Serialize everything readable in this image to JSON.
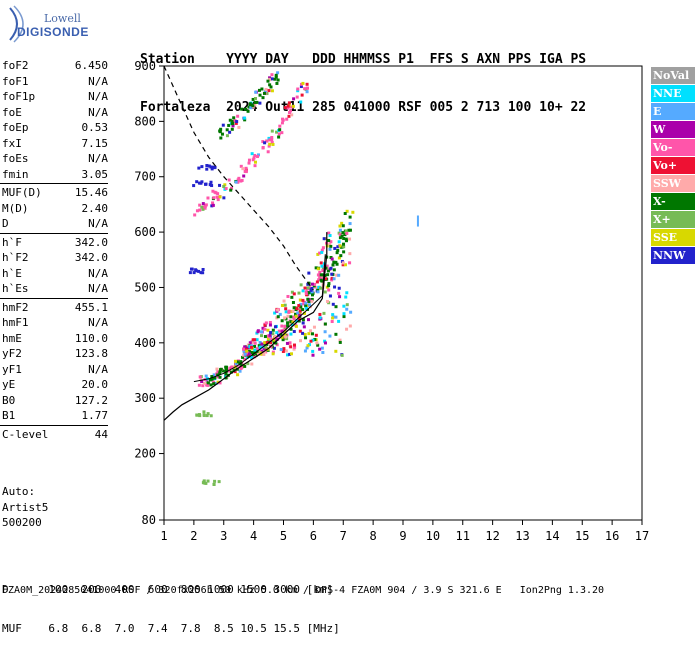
{
  "logo": {
    "line1": "Lowell",
    "line2": "DIGISONDE"
  },
  "header": {
    "line1": "Station    YYYY DAY   DDD HHMMSS P1  FFS S AXN PPS IGA PS",
    "line2": "Fortaleza  2024 Out11 285 041000 RSF 005 2 713 100 10+ 22"
  },
  "params": {
    "group1": [
      {
        "k": "foF2",
        "v": "6.450"
      },
      {
        "k": "foF1",
        "v": "N/A"
      },
      {
        "k": "foF1p",
        "v": "N/A"
      },
      {
        "k": "foE",
        "v": "N/A"
      },
      {
        "k": "foEp",
        "v": "0.53"
      },
      {
        "k": "fxI",
        "v": "7.15"
      },
      {
        "k": "foEs",
        "v": "N/A"
      },
      {
        "k": "fmin",
        "v": "3.05"
      }
    ],
    "group2": [
      {
        "k": "MUF(D)",
        "v": "15.46"
      },
      {
        "k": "M(D)",
        "v": "2.40"
      },
      {
        "k": "D",
        "v": "N/A"
      }
    ],
    "group3": [
      {
        "k": "h`F",
        "v": "342.0"
      },
      {
        "k": "h`F2",
        "v": "342.0"
      },
      {
        "k": "h`E",
        "v": "N/A"
      },
      {
        "k": "h`Es",
        "v": "N/A"
      }
    ],
    "group4": [
      {
        "k": "hmF2",
        "v": "455.1"
      },
      {
        "k": "hmF1",
        "v": "N/A"
      },
      {
        "k": "hmE",
        "v": "110.0"
      },
      {
        "k": "yF2",
        "v": "123.8"
      },
      {
        "k": "yF1",
        "v": "N/A"
      },
      {
        "k": "yE",
        "v": "20.0"
      },
      {
        "k": "B0",
        "v": "127.2"
      },
      {
        "k": "B1",
        "v": "1.77"
      }
    ],
    "group5": [
      {
        "k": "C-level",
        "v": "44"
      }
    ]
  },
  "auto": {
    "line1": "Auto:",
    "line2": "Artist5",
    "line3": "500200"
  },
  "legend": [
    {
      "label": "NoVal",
      "color": "#a0a0a0"
    },
    {
      "label": "NNE",
      "color": "#00e0ff"
    },
    {
      "label": "E",
      "color": "#55aaff"
    },
    {
      "label": "W",
      "color": "#aa00aa"
    },
    {
      "label": "Vo-",
      "color": "#ff55aa"
    },
    {
      "label": "Vo+",
      "color": "#ee1133"
    },
    {
      "label": "SSW",
      "color": "#ffaaaa"
    },
    {
      "label": "X-",
      "color": "#007700"
    },
    {
      "label": "X+",
      "color": "#77bb55"
    },
    {
      "label": "SSE",
      "color": "#d8d800"
    },
    {
      "label": "NNW",
      "color": "#2222cc"
    }
  ],
  "footer": {
    "line1": "D      100  200  400  600  800 1000 1500 3000 [km]",
    "line2": "MUF    6.8  6.8  7.0  7.4  7.8  8.5 10.5 15.5 [MHz]",
    "line3": "FZA0M_2024285041000.RSF / 320fx256h 50 kHz 5.0 km / DPS-4 FZA0M 904 / 3.9 S 321.6 E   Ion2Png 1.3.20"
  },
  "chart_data": {
    "type": "scatter",
    "title": "",
    "xlabel": "",
    "ylabel": "",
    "xlim": [
      1,
      17
    ],
    "ylim": [
      80,
      900
    ],
    "xticks": [
      1,
      2,
      3,
      4,
      5,
      6,
      7,
      8,
      9,
      10,
      11,
      12,
      13,
      14,
      15,
      16,
      17
    ],
    "yticks": [
      80,
      200,
      300,
      400,
      500,
      600,
      700,
      800,
      900
    ],
    "ionogram_traces": [
      {
        "name": "o-trace F2",
        "color": "#ff55aa",
        "points": [
          [
            2.1,
            330
          ],
          [
            2.5,
            335
          ],
          [
            3.0,
            345
          ],
          [
            3.4,
            360
          ],
          [
            3.8,
            375
          ],
          [
            4.2,
            390
          ],
          [
            4.6,
            410
          ],
          [
            5.0,
            430
          ],
          [
            5.4,
            455
          ],
          [
            5.8,
            485
          ],
          [
            6.1,
            520
          ],
          [
            6.3,
            560
          ],
          [
            6.45,
            610
          ]
        ]
      },
      {
        "name": "x-trace F2",
        "color": "#007700",
        "points": [
          [
            2.5,
            335
          ],
          [
            3.0,
            350
          ],
          [
            3.5,
            365
          ],
          [
            4.0,
            385
          ],
          [
            4.5,
            405
          ],
          [
            5.0,
            430
          ],
          [
            5.5,
            460
          ],
          [
            6.0,
            490
          ],
          [
            6.4,
            520
          ],
          [
            6.8,
            560
          ],
          [
            7.0,
            600
          ],
          [
            7.15,
            640
          ]
        ]
      },
      {
        "name": "multihop lower",
        "color": "#ff55aa",
        "points": [
          [
            2.1,
            640
          ],
          [
            2.5,
            660
          ],
          [
            3.0,
            680
          ],
          [
            3.5,
            705
          ],
          [
            4.0,
            735
          ],
          [
            4.5,
            770
          ],
          [
            5.0,
            805
          ],
          [
            5.4,
            840
          ],
          [
            5.7,
            875
          ]
        ]
      },
      {
        "name": "multihop upper",
        "color": "#007700",
        "points": [
          [
            2.9,
            780
          ],
          [
            3.3,
            800
          ],
          [
            3.7,
            820
          ],
          [
            4.1,
            845
          ],
          [
            4.5,
            870
          ],
          [
            4.8,
            890
          ]
        ]
      }
    ],
    "profile_curve": [
      [
        1,
        260
      ],
      [
        1.3,
        275
      ],
      [
        1.6,
        288
      ],
      [
        2.0,
        300
      ],
      [
        2.5,
        315
      ],
      [
        3.0,
        335
      ],
      [
        3.5,
        355
      ],
      [
        4.0,
        372
      ],
      [
        4.5,
        390
      ],
      [
        5.0,
        415
      ],
      [
        5.5,
        440
      ],
      [
        6.0,
        455
      ],
      [
        6.3,
        480
      ],
      [
        6.45,
        560
      ],
      [
        6.45,
        600
      ]
    ],
    "muf_curve": [
      [
        1,
        900
      ],
      [
        1.5,
        840
      ],
      [
        2.0,
        780
      ],
      [
        2.5,
        735
      ],
      [
        3.0,
        700
      ],
      [
        3.5,
        670
      ],
      [
        4.0,
        640
      ],
      [
        4.5,
        610
      ],
      [
        5.0,
        575
      ],
      [
        5.4,
        540
      ],
      [
        5.8,
        510
      ],
      [
        6.0,
        495
      ]
    ],
    "lower_curve": [
      [
        2.0,
        330
      ],
      [
        2.5,
        335
      ],
      [
        3.0,
        345
      ],
      [
        3.5,
        360
      ],
      [
        4.0,
        380
      ],
      [
        4.5,
        400
      ],
      [
        5.0,
        420
      ],
      [
        5.5,
        445
      ],
      [
        6.0,
        470
      ],
      [
        6.3,
        485
      ],
      [
        6.4,
        560
      ]
    ]
  }
}
